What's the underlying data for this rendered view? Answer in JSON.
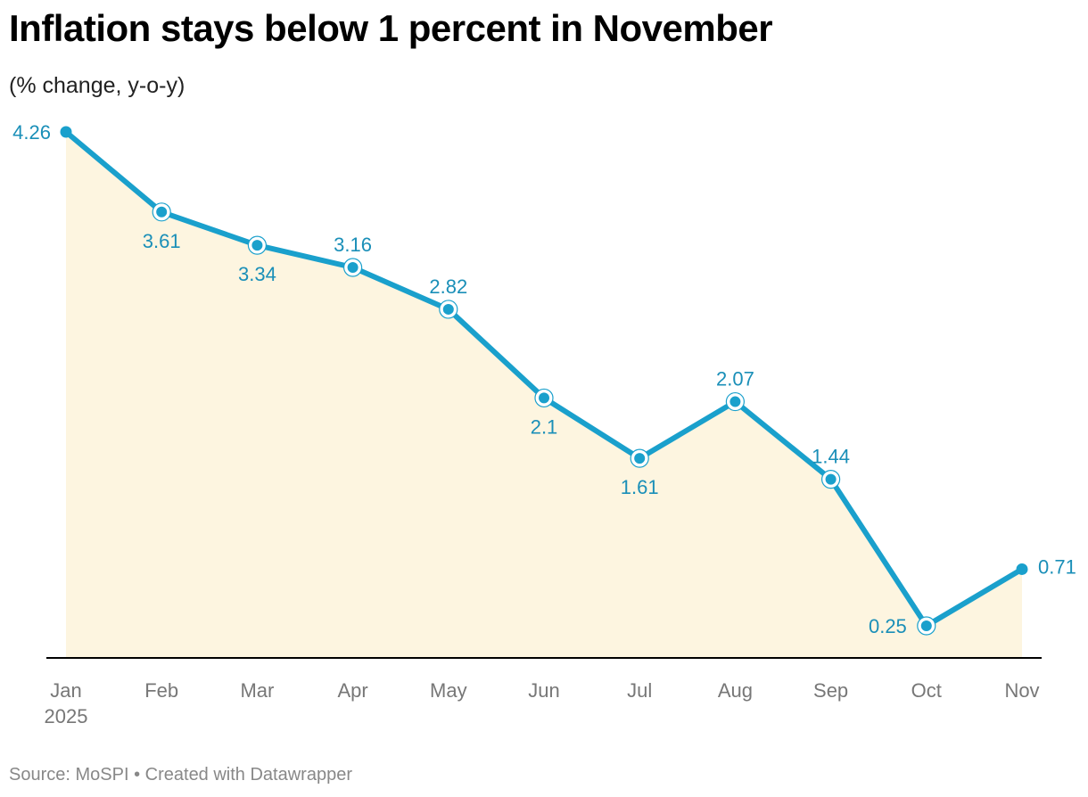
{
  "header": {
    "title": "Inflation stays below 1 percent in November",
    "subtitle": "(% change, y-o-y)"
  },
  "footer": {
    "source": "Source: MoSPI",
    "separator": "•",
    "credit": "Created with Datawrapper"
  },
  "colors": {
    "line": "#1aa0cc",
    "label": "#1a8fb8",
    "area": "#fdf5e0",
    "axis": "#000000",
    "tick": "#777777"
  },
  "chart_data": {
    "type": "line",
    "title": "Inflation stays below 1 percent in November",
    "subtitle": "(% change, y-o-y)",
    "categories": [
      "Jan",
      "Feb",
      "Mar",
      "Apr",
      "May",
      "Jun",
      "Jul",
      "Aug",
      "Sep",
      "Oct",
      "Nov"
    ],
    "first_category_year": "2025",
    "series": [
      {
        "values": [
          4.26,
          3.61,
          3.34,
          3.16,
          2.82,
          2.1,
          1.61,
          2.07,
          1.44,
          0.25,
          0.71
        ],
        "value_labels": [
          "4.26",
          "3.61",
          "3.34",
          "3.16",
          "2.82",
          "2.1",
          "1.61",
          "2.07",
          "1.44",
          "0.25",
          "0.71"
        ]
      }
    ],
    "ylim": [
      0,
      4.26
    ],
    "grid": false,
    "area_fill": true,
    "legend": "none"
  }
}
